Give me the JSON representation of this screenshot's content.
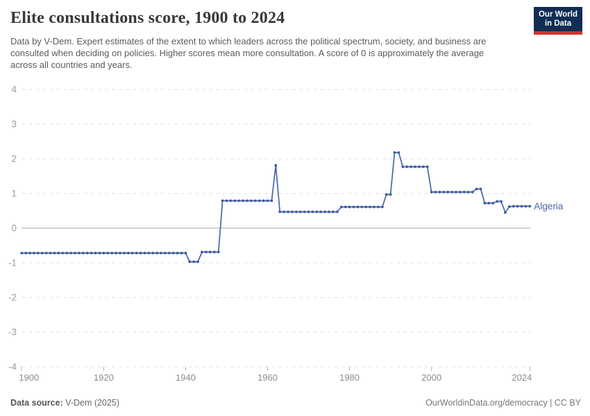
{
  "header": {
    "title": "Elite consultations score, 1900 to 2024",
    "subtitle": "Data by V-Dem. Expert estimates of the extent to which leaders across the political spectrum, society, and business are consulted when deciding on policies. Higher scores mean more consultation. A score of 0 is approximately the average across all countries and years.",
    "logo": {
      "line1": "Our World",
      "line2": "in Data"
    }
  },
  "chart_data": {
    "type": "line",
    "title": "Elite consultations score, 1900 to 2024",
    "xlabel": "",
    "ylabel": "",
    "xlim": [
      1900,
      2024
    ],
    "ylim": [
      -4,
      4
    ],
    "grid": "horizontal dashed, solid zero line",
    "legend_position": "end-of-line label",
    "line_color": "#4767a7",
    "dot_color": "#3d5c9d",
    "x_ticks": [
      1900,
      1920,
      1940,
      1960,
      1980,
      2000,
      2024
    ],
    "y_ticks": [
      4,
      3,
      2,
      1,
      0,
      -1,
      -2,
      -3,
      -4
    ],
    "series": [
      {
        "name": "Algeria",
        "x": [
          1900,
          1901,
          1902,
          1903,
          1904,
          1905,
          1906,
          1907,
          1908,
          1909,
          1910,
          1911,
          1912,
          1913,
          1914,
          1915,
          1916,
          1917,
          1918,
          1919,
          1920,
          1921,
          1922,
          1923,
          1924,
          1925,
          1926,
          1927,
          1928,
          1929,
          1930,
          1931,
          1932,
          1933,
          1934,
          1935,
          1936,
          1937,
          1938,
          1939,
          1940,
          1941,
          1942,
          1943,
          1944,
          1945,
          1946,
          1947,
          1948,
          1949,
          1950,
          1951,
          1952,
          1953,
          1954,
          1955,
          1956,
          1957,
          1958,
          1959,
          1960,
          1961,
          1962,
          1963,
          1964,
          1965,
          1966,
          1967,
          1968,
          1969,
          1970,
          1971,
          1972,
          1973,
          1974,
          1975,
          1976,
          1977,
          1978,
          1979,
          1980,
          1981,
          1982,
          1983,
          1984,
          1985,
          1986,
          1987,
          1988,
          1989,
          1990,
          1991,
          1992,
          1993,
          1994,
          1995,
          1996,
          1997,
          1998,
          1999,
          2000,
          2001,
          2002,
          2003,
          2004,
          2005,
          2006,
          2007,
          2008,
          2009,
          2010,
          2011,
          2012,
          2013,
          2014,
          2015,
          2016,
          2017,
          2018,
          2019,
          2020,
          2021,
          2022,
          2023,
          2024
        ],
        "values": [
          -0.72,
          -0.72,
          -0.72,
          -0.72,
          -0.72,
          -0.72,
          -0.72,
          -0.72,
          -0.72,
          -0.72,
          -0.72,
          -0.72,
          -0.72,
          -0.72,
          -0.72,
          -0.72,
          -0.72,
          -0.72,
          -0.72,
          -0.72,
          -0.72,
          -0.72,
          -0.72,
          -0.72,
          -0.72,
          -0.72,
          -0.72,
          -0.72,
          -0.72,
          -0.72,
          -0.72,
          -0.72,
          -0.72,
          -0.72,
          -0.72,
          -0.72,
          -0.72,
          -0.72,
          -0.72,
          -0.72,
          -0.72,
          -0.97,
          -0.97,
          -0.97,
          -0.69,
          -0.69,
          -0.69,
          -0.69,
          -0.69,
          0.79,
          0.79,
          0.79,
          0.79,
          0.79,
          0.79,
          0.79,
          0.79,
          0.79,
          0.79,
          0.79,
          0.79,
          0.79,
          1.81,
          0.47,
          0.47,
          0.47,
          0.47,
          0.47,
          0.47,
          0.47,
          0.47,
          0.47,
          0.47,
          0.47,
          0.47,
          0.47,
          0.47,
          0.47,
          0.61,
          0.61,
          0.61,
          0.61,
          0.61,
          0.61,
          0.61,
          0.61,
          0.61,
          0.61,
          0.61,
          0.97,
          0.97,
          2.18,
          2.18,
          1.77,
          1.77,
          1.77,
          1.77,
          1.77,
          1.77,
          1.77,
          1.04,
          1.04,
          1.04,
          1.04,
          1.04,
          1.04,
          1.04,
          1.04,
          1.04,
          1.04,
          1.04,
          1.13,
          1.13,
          0.72,
          0.72,
          0.72,
          0.77,
          0.77,
          0.45,
          0.62,
          0.63,
          0.63,
          0.63,
          0.63,
          0.63
        ]
      }
    ]
  },
  "footer": {
    "source_label": "Data source:",
    "source_value": "V-Dem (2025)",
    "license": "OurWorldinData.org/democracy | CC BY"
  }
}
